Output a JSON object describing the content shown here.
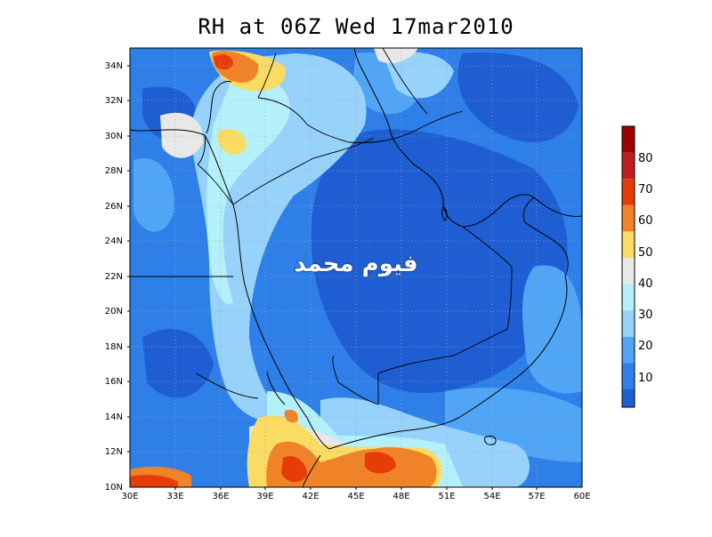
{
  "title": "RH at 06Z Wed 17mar2010",
  "watermark": "فيوم محمد",
  "map": {
    "lat_labels": [
      "34N",
      "32N",
      "30N",
      "28N",
      "26N",
      "24N",
      "22N",
      "20N",
      "18N",
      "16N",
      "14N",
      "12N",
      "10N"
    ],
    "lon_labels": [
      "30E",
      "33E",
      "36E",
      "39E",
      "42E",
      "45E",
      "48E",
      "51E",
      "54E",
      "57E",
      "60E"
    ],
    "lat_range": [
      10,
      35
    ],
    "lon_range": [
      30,
      60
    ],
    "grid": "dotted"
  },
  "colorbar": {
    "labels": [
      "10",
      "20",
      "30",
      "40",
      "50",
      "60",
      "70",
      "80"
    ],
    "colors": [
      "#1e5ed2",
      "#2e7fe8",
      "#50a5f5",
      "#96d2fa",
      "#b4f0fa",
      "#e8e8e8",
      "#fadc64",
      "#f08228",
      "#e63c0a",
      "#c01e1e",
      "#a00000"
    ]
  }
}
